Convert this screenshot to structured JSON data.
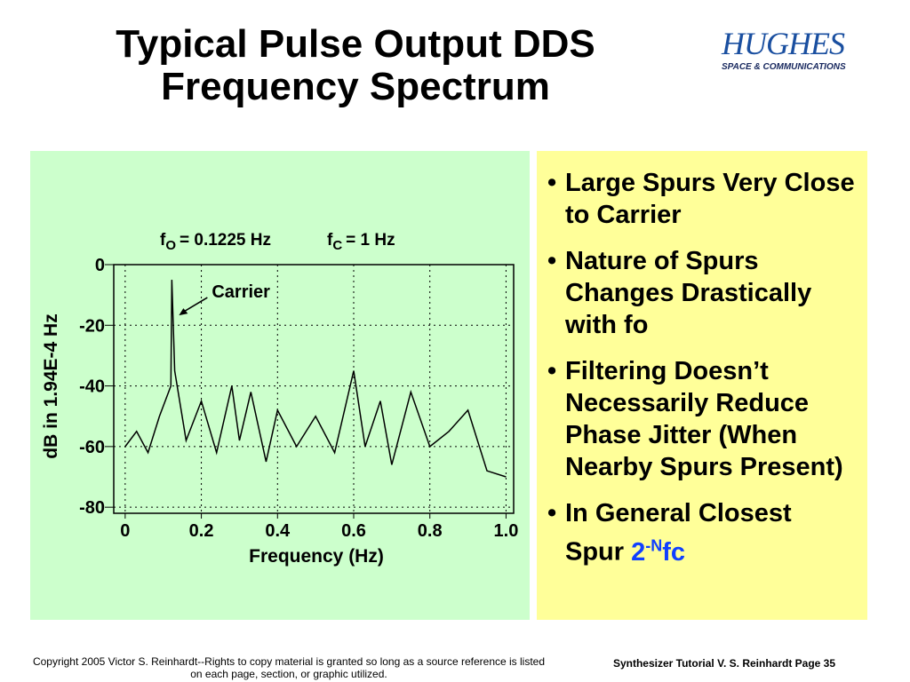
{
  "header": {
    "title_lines": [
      "Typical Pulse Output DDS",
      "Frequency Spectrum"
    ],
    "logo": {
      "name": "HUGHES",
      "tagline": "SPACE & COMMUNICATIONS"
    }
  },
  "chart_data": {
    "type": "line",
    "notes": [
      {
        "symbol": "f",
        "subscript": "O",
        "text": "= 0.1225 Hz"
      },
      {
        "symbol": "f",
        "subscript": "C",
        "text": "= 1 Hz"
      }
    ],
    "annotation": {
      "text": "Carrier",
      "x": 0.1225,
      "y": -5
    },
    "xlabel": "Frequency (Hz)",
    "ylabel": "dB in 1.94E-4 Hz",
    "x": [
      0,
      0.03,
      0.06,
      0.09,
      0.12,
      0.1225,
      0.13,
      0.16,
      0.2,
      0.24,
      0.28,
      0.3,
      0.33,
      0.37,
      0.4,
      0.45,
      0.5,
      0.55,
      0.6,
      0.63,
      0.67,
      0.7,
      0.75,
      0.8,
      0.85,
      0.9,
      0.95,
      1.0
    ],
    "series": [
      {
        "color": "#000000",
        "values": [
          -60,
          -55,
          -62,
          -50,
          -40,
          -5,
          -35,
          -58,
          -45,
          -62,
          -40,
          -58,
          -42,
          -65,
          -48,
          -60,
          -50,
          -62,
          -35,
          -60,
          -45,
          -66,
          -42,
          -60,
          -55,
          -48,
          -68,
          -70
        ]
      }
    ],
    "xlim": [
      -0.03,
      1.02
    ],
    "ylim": [
      -82,
      0
    ],
    "xticks": [
      0,
      0.2,
      0.4,
      0.6,
      0.8,
      {
        "value": 1,
        "label": "1.0"
      }
    ],
    "yticks": [
      0,
      -20,
      -40,
      -60,
      -80
    ],
    "grid": true
  },
  "bullets": [
    {
      "text": "Large Spurs Very Close to Carrier"
    },
    {
      "text": "Nature of Spurs Changes Drastically with fo"
    },
    {
      "text": "Filtering Doesn’t Necessarily Reduce Phase Jitter (When Nearby Spurs Present)"
    },
    {
      "text": "In General Closest Spur",
      "highlight_base": "2",
      "highlight_superscript": "-N",
      "highlight_tail": "fc"
    }
  ],
  "footer": {
    "copyright": "Copyright 2005 Victor S. Reinhardt--Rights to copy material is granted so long as a source reference is listed on each page, section, or graphic utilized.",
    "page": "Synthesizer Tutorial V. S. Reinhardt Page 35"
  }
}
